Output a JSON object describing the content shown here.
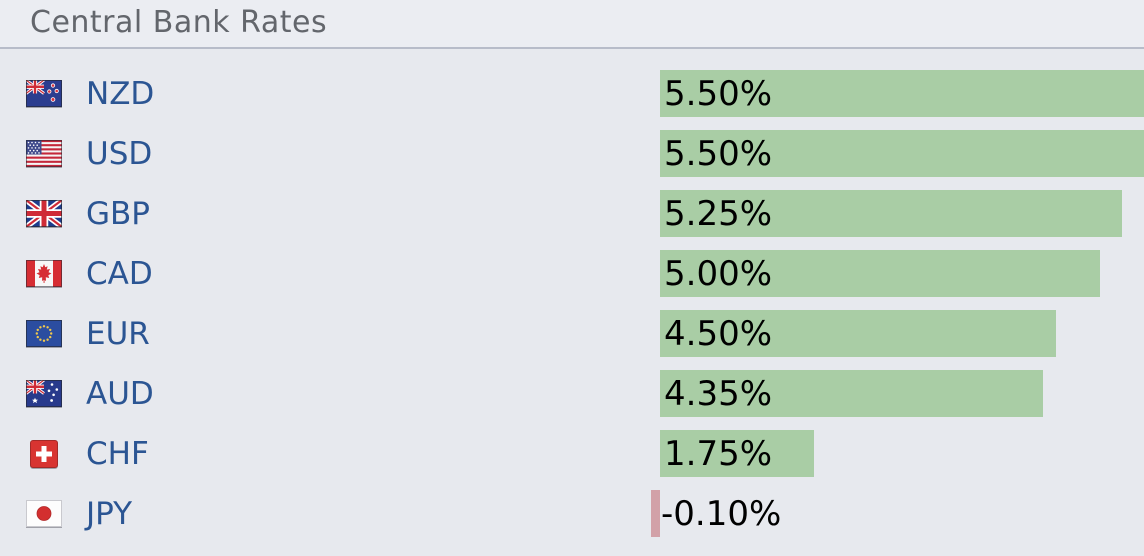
{
  "header": {
    "title": "Central Bank Rates"
  },
  "colors": {
    "background": "#e7e9ee",
    "header_background": "#ebedf2",
    "divider": "#b7bcc9",
    "title_text": "#63666c",
    "currency_text": "#2b5593",
    "value_text": "#000000",
    "positive_bar": "#a9cda5",
    "negative_bar": "#d2a1a8"
  },
  "chart_data": {
    "type": "bar",
    "orientation": "horizontal",
    "title": "Central Bank Rates",
    "categories": [
      "NZD",
      "USD",
      "GBP",
      "CAD",
      "EUR",
      "AUD",
      "CHF",
      "JPY"
    ],
    "values": [
      5.5,
      5.5,
      5.25,
      5.0,
      4.5,
      4.35,
      1.75,
      -0.1
    ],
    "value_labels": [
      "5.50%",
      "5.50%",
      "5.25%",
      "5.00%",
      "4.50%",
      "4.35%",
      "1.75%",
      "-0.10%"
    ],
    "xlim": [
      -0.1,
      5.5
    ],
    "grid": false,
    "legend": false,
    "bar_value_position": "inside-left",
    "rows": [
      {
        "currency": "NZD",
        "flag": "new-zealand",
        "value": 5.5,
        "label": "5.50%"
      },
      {
        "currency": "USD",
        "flag": "united-states",
        "value": 5.5,
        "label": "5.50%"
      },
      {
        "currency": "GBP",
        "flag": "united-kingdom",
        "value": 5.25,
        "label": "5.25%"
      },
      {
        "currency": "CAD",
        "flag": "canada",
        "value": 5.0,
        "label": "5.00%"
      },
      {
        "currency": "EUR",
        "flag": "european-union",
        "value": 4.5,
        "label": "4.50%"
      },
      {
        "currency": "AUD",
        "flag": "australia",
        "value": 4.35,
        "label": "4.35%"
      },
      {
        "currency": "CHF",
        "flag": "switzerland",
        "value": 1.75,
        "label": "1.75%"
      },
      {
        "currency": "JPY",
        "flag": "japan",
        "value": -0.1,
        "label": "-0.10%"
      }
    ]
  }
}
